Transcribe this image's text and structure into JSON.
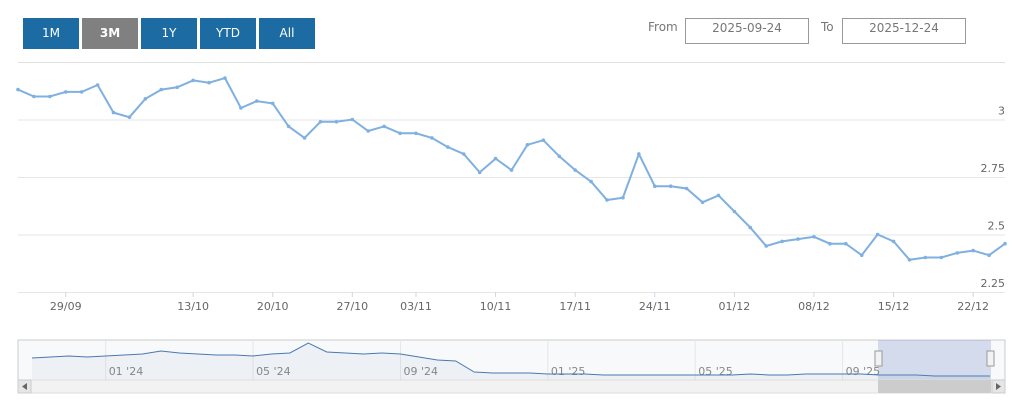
{
  "range_selector": {
    "buttons": [
      "1M",
      "3M",
      "1Y",
      "YTD",
      "All"
    ],
    "selected": 1,
    "from_label": "From",
    "from_value": "2025-09-24",
    "to_label": "To",
    "to_value": "2025-12-24"
  },
  "chart_data": [
    {
      "type": "line",
      "color": "#7fb0e0",
      "grid": true,
      "yaxis_position": "right",
      "categories": [
        null,
        null,
        null,
        "29/09",
        null,
        null,
        null,
        null,
        null,
        null,
        null,
        "13/10",
        null,
        null,
        null,
        null,
        "20/10",
        null,
        null,
        null,
        null,
        "27/10",
        null,
        null,
        null,
        "03/11",
        null,
        null,
        null,
        null,
        "10/11",
        null,
        null,
        null,
        null,
        "17/11",
        null,
        null,
        null,
        null,
        "24/11",
        null,
        null,
        null,
        null,
        "01/12",
        null,
        null,
        null,
        null,
        "08/12",
        null,
        null,
        null,
        null,
        "15/12",
        null,
        null,
        null,
        null,
        "22/12",
        null,
        null
      ],
      "values": [
        3.13,
        3.1,
        3.1,
        3.12,
        3.12,
        3.15,
        3.03,
        3.01,
        3.09,
        3.13,
        3.14,
        3.17,
        3.16,
        3.18,
        3.05,
        3.08,
        3.07,
        2.97,
        2.92,
        2.99,
        2.99,
        3.0,
        2.95,
        2.97,
        2.94,
        2.94,
        2.92,
        2.88,
        2.85,
        2.77,
        2.83,
        2.78,
        2.89,
        2.91,
        2.84,
        2.78,
        2.73,
        2.65,
        2.66,
        2.85,
        2.71,
        2.71,
        2.7,
        2.64,
        2.67,
        2.6,
        2.53,
        2.45,
        2.47,
        2.48,
        2.49,
        2.46,
        2.46,
        2.41,
        2.5,
        2.47,
        2.39,
        2.4,
        2.4,
        2.42,
        2.43,
        2.41,
        2.46
      ],
      "ylim": [
        2.25,
        3.25
      ],
      "yticks": [
        2.25,
        2.5,
        2.75,
        3
      ]
    },
    {
      "type": "area",
      "color": "#4a78b0",
      "categories": [
        null,
        null,
        null,
        null,
        "01 '24",
        null,
        null,
        null,
        null,
        null,
        null,
        null,
        "05 '24",
        null,
        null,
        null,
        null,
        null,
        null,
        null,
        "09 '24",
        null,
        null,
        null,
        null,
        null,
        null,
        null,
        "01 '25",
        null,
        null,
        null,
        null,
        null,
        null,
        null,
        "05 '25",
        null,
        null,
        null,
        null,
        null,
        null,
        null,
        "09 '25",
        null,
        null,
        null,
        null,
        null,
        null,
        null,
        null
      ],
      "values": [
        8.7,
        9.05,
        9.4,
        9.05,
        9.4,
        9.75,
        10.1,
        11.15,
        10.45,
        10.1,
        9.75,
        9.75,
        9.4,
        10.1,
        10.45,
        13.95,
        10.8,
        10.45,
        10.1,
        10.45,
        10.1,
        9.05,
        8.0,
        7.65,
        3.8,
        3.45,
        3.45,
        3.45,
        3.1,
        3.1,
        3.1,
        2.75,
        2.75,
        2.75,
        2.75,
        2.75,
        2.75,
        2.75,
        2.75,
        3.1,
        2.75,
        2.75,
        3.1,
        3.1,
        3.1,
        3.1,
        2.75,
        2.75,
        2.75,
        2.4,
        2.4,
        2.4,
        2.4
      ],
      "ylim": [
        1,
        15
      ]
    }
  ]
}
